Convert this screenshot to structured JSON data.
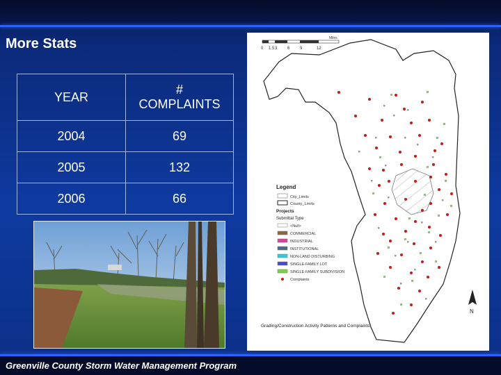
{
  "slide": {
    "title": "More Stats",
    "footer": "Greenville County Storm Water Management Program"
  },
  "table": {
    "headers": [
      "YEAR",
      "#",
      "COMPLAINTS"
    ],
    "rows": [
      {
        "year": "2004",
        "count": "69"
      },
      {
        "year": "2005",
        "count": "132"
      },
      {
        "year": "2006",
        "count": "66"
      }
    ]
  },
  "map": {
    "scale": {
      "unit": "Miles",
      "ticks": [
        "0",
        "1.5",
        "3",
        "6",
        "9",
        "12"
      ]
    },
    "legend": {
      "title": "Legend",
      "boundaries": [
        "City_Limits",
        "County_Limits"
      ],
      "projects_title": "Projects",
      "submittal_title": "Submittal Type",
      "types": [
        {
          "label": "<Null>",
          "color": "#ffffff"
        },
        {
          "label": "COMMERCIAL",
          "color": "#8a6a3a"
        },
        {
          "label": "INDUSTRIAL",
          "color": "#d6449a"
        },
        {
          "label": "INSTITUTIONAL",
          "color": "#4d6a86"
        },
        {
          "label": "NON-LAND DISTURBING",
          "color": "#38c8d8"
        },
        {
          "label": "SINGLE-FAMILY LOT",
          "color": "#4a4ad0"
        },
        {
          "label": "SINGLE-FAMILY SUBDIVISION",
          "color": "#7ed14a"
        }
      ],
      "complaints_label": "Complaints",
      "complaints_color": "#c41a1a"
    },
    "caption": "Grading/Construction Activity Patterns and Complaints",
    "north_label": "N"
  }
}
